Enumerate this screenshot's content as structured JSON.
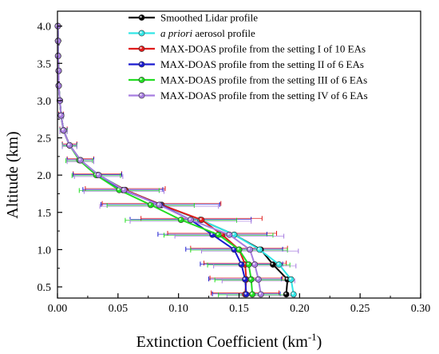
{
  "chart_data": {
    "type": "line",
    "xlabel": "Extinction Coefficient (km",
    "xlabel_sup": "-1",
    "xlabel_end": ")",
    "ylabel": "Altitude (km)",
    "xlim": [
      0.0,
      0.3
    ],
    "ylim": [
      0.35,
      4.2
    ],
    "xticks": [
      "0.00",
      "0.05",
      "0.10",
      "0.15",
      "0.20",
      "0.25",
      "0.30"
    ],
    "yticks": [
      "0.5",
      "1.0",
      "1.5",
      "2.0",
      "2.5",
      "3.0",
      "3.5",
      "4.0"
    ],
    "legend_position": "top-right",
    "altitudes": [
      0.4,
      0.6,
      0.8,
      1.0,
      1.2,
      1.4,
      1.6,
      1.8,
      2.0,
      2.2,
      2.4,
      2.6,
      2.8,
      3.0,
      3.2,
      3.4,
      3.6,
      3.8,
      4.0
    ],
    "series": [
      {
        "name": "Smoothed Lidar profile",
        "name_italic": "",
        "color": "#000000",
        "x": [
          0.189,
          0.19,
          0.178,
          0.168,
          0.146,
          0.118,
          0.086,
          0.056,
          0.034,
          0.019,
          0.01,
          0.005,
          0.003,
          0.002,
          0.001,
          0.001,
          0.0005,
          0.0005,
          0.0003
        ],
        "err": []
      },
      {
        "name": "aerosol profile",
        "name_italic": "a priori",
        "color": "#33e6e6",
        "x": [
          0.195,
          0.193,
          0.183,
          0.167,
          0.146,
          0.118,
          0.086,
          0.056,
          0.034,
          0.019,
          0.01,
          0.005,
          0.003,
          0.002,
          0.001,
          0.001,
          0.0005,
          0.0005,
          0.0003
        ],
        "err": []
      },
      {
        "name": "MAX-DOAS profile from the setting I of 10 EAs",
        "name_italic": "",
        "color": "#e01a1a",
        "x": [
          0.155,
          0.156,
          0.155,
          0.15,
          0.136,
          0.119,
          0.086,
          0.056,
          0.033,
          0.019,
          0.01,
          0.005,
          0.003,
          0.002,
          0.001,
          0.001,
          0.0005,
          0.0005,
          0.0003
        ],
        "err": [
          0.028,
          0.03,
          0.034,
          0.04,
          0.045,
          0.05,
          0.049,
          0.033,
          0.02,
          0.011,
          0.006,
          0.003,
          0.002,
          0.001,
          0.001,
          0.0005,
          0.0003,
          0.0003,
          0.0002
        ]
      },
      {
        "name": "MAX-DOAS profile from the setting II of 6 EAs",
        "name_italic": "",
        "color": "#1a1ad0",
        "x": [
          0.156,
          0.155,
          0.152,
          0.146,
          0.128,
          0.11,
          0.085,
          0.054,
          0.033,
          0.019,
          0.01,
          0.005,
          0.003,
          0.002,
          0.001,
          0.001,
          0.0005,
          0.0005,
          0.0003
        ],
        "err": [
          0.028,
          0.03,
          0.034,
          0.04,
          0.045,
          0.05,
          0.049,
          0.033,
          0.02,
          0.011,
          0.006,
          0.003,
          0.002,
          0.001,
          0.001,
          0.0005,
          0.0003,
          0.0003,
          0.0002
        ]
      },
      {
        "name": "MAX-DOAS profile from the setting III of 6 EAs",
        "name_italic": "",
        "color": "#22dd22",
        "x": [
          0.161,
          0.16,
          0.158,
          0.15,
          0.133,
          0.102,
          0.077,
          0.051,
          0.032,
          0.018,
          0.01,
          0.005,
          0.003,
          0.002,
          0.001,
          0.001,
          0.0005,
          0.0005,
          0.0003
        ],
        "err": [
          0.028,
          0.03,
          0.034,
          0.04,
          0.045,
          0.046,
          0.036,
          0.033,
          0.02,
          0.011,
          0.006,
          0.003,
          0.002,
          0.001,
          0.001,
          0.0005,
          0.0003,
          0.0003,
          0.0002
        ]
      },
      {
        "name": "MAX-DOAS profile from the setting IV of 6 EAs",
        "name_italic": "",
        "color": "#a77de0",
        "x": [
          0.168,
          0.166,
          0.163,
          0.159,
          0.142,
          0.11,
          0.084,
          0.055,
          0.034,
          0.019,
          0.01,
          0.005,
          0.003,
          0.002,
          0.001,
          0.001,
          0.0005,
          0.0005,
          0.0003
        ],
        "err": [
          0.028,
          0.03,
          0.034,
          0.04,
          0.045,
          0.05,
          0.049,
          0.033,
          0.02,
          0.011,
          0.006,
          0.003,
          0.002,
          0.001,
          0.001,
          0.0005,
          0.0003,
          0.0003,
          0.0002
        ]
      }
    ]
  }
}
